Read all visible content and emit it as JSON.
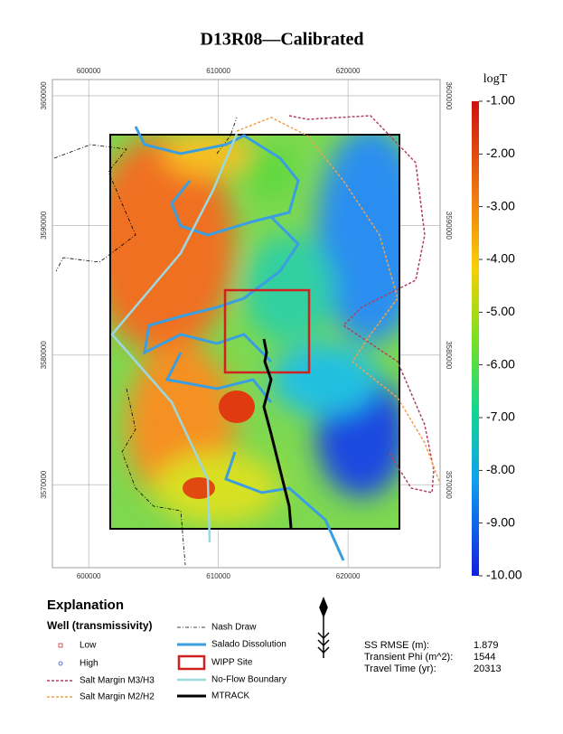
{
  "title": "D13R08—Calibrated",
  "map": {
    "x_extent": [
      597200,
      627100
    ],
    "y_extent": [
      3563600,
      3601250
    ],
    "x_ticks": [
      600000,
      610000,
      620000
    ],
    "y_ticks": [
      3600000,
      3590000,
      3580000,
      3570000
    ]
  },
  "colorbar": {
    "title": "logT",
    "range": [
      -1,
      -10
    ],
    "ticks": [
      {
        "value": -1,
        "label": "-1.00"
      },
      {
        "value": -2,
        "label": "-2.00"
      },
      {
        "value": -3,
        "label": "-3.00"
      },
      {
        "value": -4,
        "label": "-4.00"
      },
      {
        "value": -5,
        "label": "-5.00"
      },
      {
        "value": -6,
        "label": "-6.00"
      },
      {
        "value": -7,
        "label": "-7.00"
      },
      {
        "value": -8,
        "label": "-8.00"
      },
      {
        "value": -9,
        "label": "-9.00"
      },
      {
        "value": -10,
        "label": "-10.00"
      }
    ]
  },
  "legend": {
    "title": "Explanation",
    "subtitle": "Well (transmissivity)",
    "items": [
      "Low",
      "High",
      "Salt Margin M3/H3",
      "Salt Margin M2/H2",
      "Nash Draw",
      "Salado Dissolution",
      "WIPP Site",
      "No-Flow Boundary",
      "MTRACK"
    ]
  },
  "stats": [
    {
      "label": "SS RMSE (m):",
      "value": 1.879
    },
    {
      "label": "Transient Phi (m^2):",
      "value": 1544
    },
    {
      "label": "Travel Time (yr):",
      "value": 20313
    }
  ]
}
